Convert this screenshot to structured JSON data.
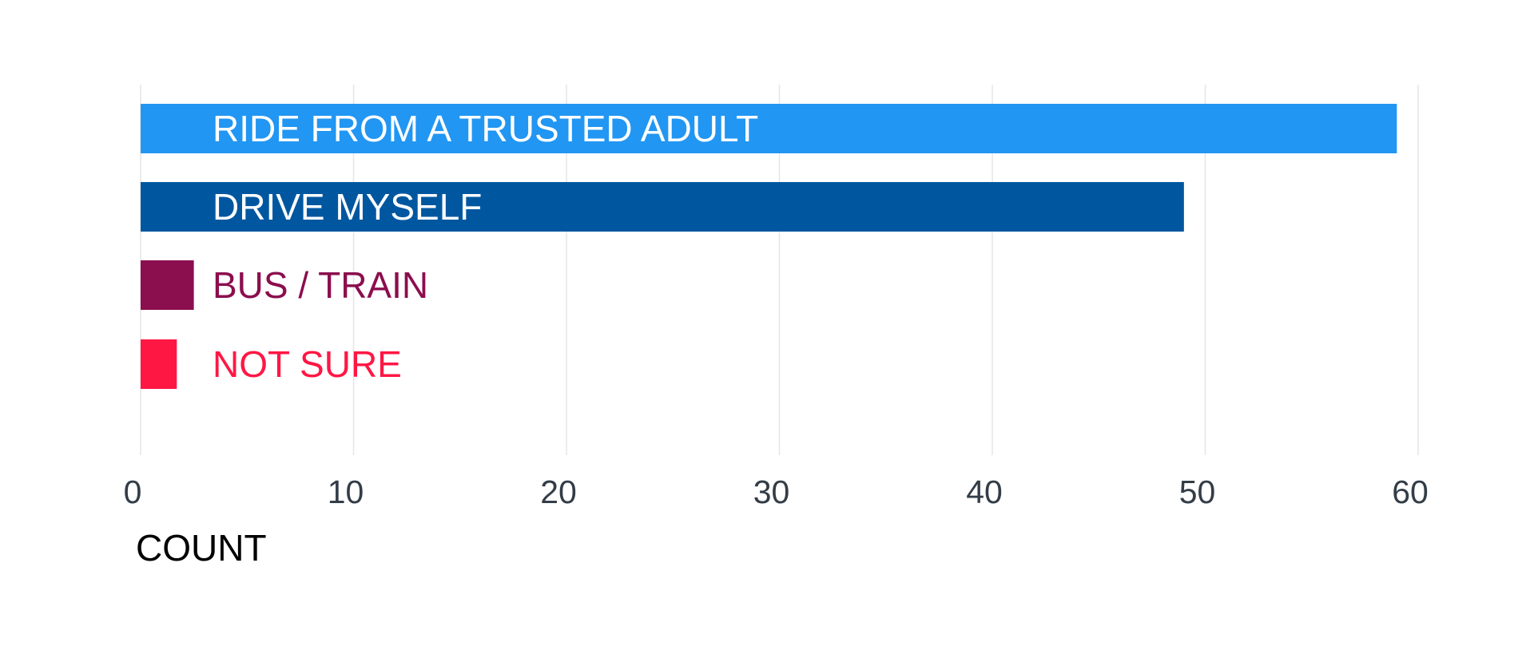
{
  "chart_data": {
    "type": "bar",
    "orientation": "horizontal",
    "categories": [
      "RIDE FROM A TRUSTED ADULT",
      "DRIVE MYSELF",
      "BUS / TRAIN",
      "NOT SURE"
    ],
    "values": [
      59,
      49,
      2.5,
      1.7
    ],
    "colors": [
      "#2196f3",
      "#0057a0",
      "#8b0e4e",
      "#ff1744"
    ],
    "label_colors": [
      "#ffffff",
      "#ffffff",
      "#8b0e4e",
      "#ff1744"
    ],
    "xlabel": "COUNT",
    "ylabel": "",
    "title": "",
    "xlim": [
      0,
      60
    ],
    "xticks": [
      0,
      10,
      20,
      30,
      40,
      50,
      60
    ],
    "grid": "vertical",
    "legend": "none"
  }
}
